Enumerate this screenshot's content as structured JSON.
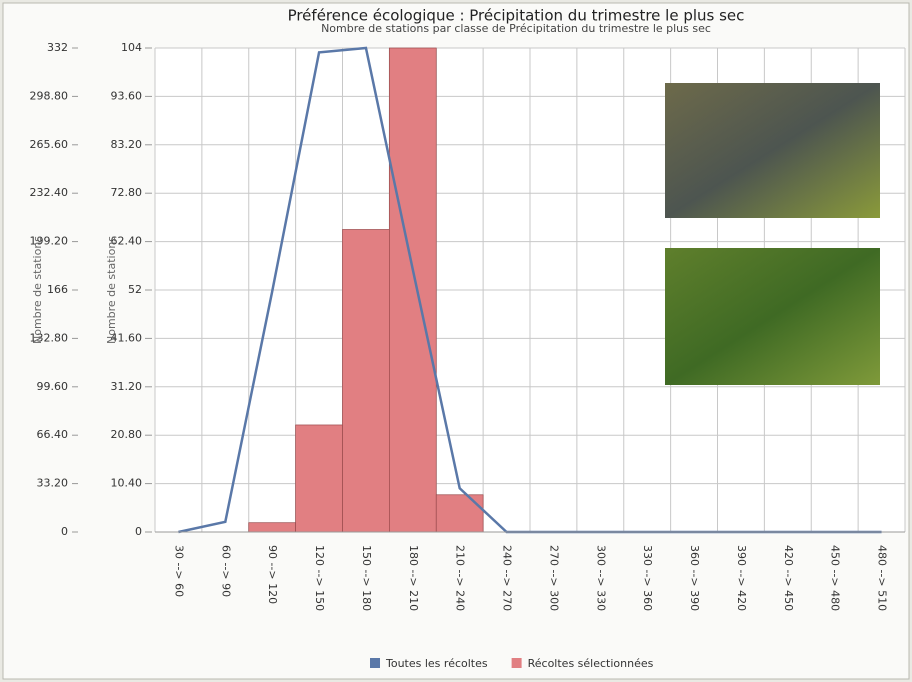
{
  "chart_data": {
    "type": "bar",
    "title": "Préférence écologique : Précipitation du trimestre le plus sec",
    "subtitle": "Nombre de stations par classe de Précipitation du trimestre le plus sec",
    "ylabel": "Nombre de stations",
    "y2label": "Nombre de stations",
    "categories": [
      "30 --> 60",
      "60 --> 90",
      "90 --> 120",
      "120 --> 150",
      "150 --> 180",
      "180 --> 210",
      "210 --> 240",
      "240 --> 270",
      "270 --> 300",
      "300 --> 330",
      "330 --> 360",
      "360 --> 390",
      "390 --> 420",
      "420 --> 450",
      "450 --> 480",
      "480 --> 510"
    ],
    "series": [
      {
        "name": "Toutes les récoltes",
        "type": "line",
        "color": "#5a78a8",
        "values": [
          0,
          7,
          165,
          329,
          332,
          180,
          30,
          0,
          0,
          0,
          0,
          0,
          0,
          0,
          0,
          0
        ]
      },
      {
        "name": "Récoltes sélectionnées",
        "type": "bar",
        "axis": "y2",
        "color": "#e17f82",
        "values": [
          0,
          0,
          2,
          23,
          65,
          104,
          8,
          0,
          0,
          0,
          0,
          0,
          0,
          0,
          0,
          0
        ]
      }
    ],
    "ylim": [
      0,
      332
    ],
    "yticks": [
      0,
      {
        "value": 33.2,
        "label": "33.20"
      },
      {
        "value": 66.4,
        "label": "66.40"
      },
      {
        "value": 99.6,
        "label": "99.60"
      },
      {
        "value": 132.8,
        "label": "132.80"
      },
      166,
      {
        "value": 199.2,
        "label": "199.20"
      },
      {
        "value": 232.4,
        "label": "232.40"
      },
      {
        "value": 265.6,
        "label": "265.60"
      },
      {
        "value": 298.8,
        "label": "298.80"
      },
      332
    ],
    "y2lim": [
      0,
      104
    ],
    "y2ticks": [
      0,
      {
        "value": 10.4,
        "label": "10.40"
      },
      {
        "value": 20.8,
        "label": "20.80"
      },
      {
        "value": 31.2,
        "label": "31.20"
      },
      {
        "value": 41.6,
        "label": "41.60"
      },
      52,
      {
        "value": 62.4,
        "label": "62.40"
      },
      {
        "value": 72.8,
        "label": "72.80"
      },
      {
        "value": 83.2,
        "label": "83.20"
      },
      {
        "value": 93.6,
        "label": "93.60"
      },
      104
    ],
    "grid": true,
    "legend": "bottom"
  }
}
